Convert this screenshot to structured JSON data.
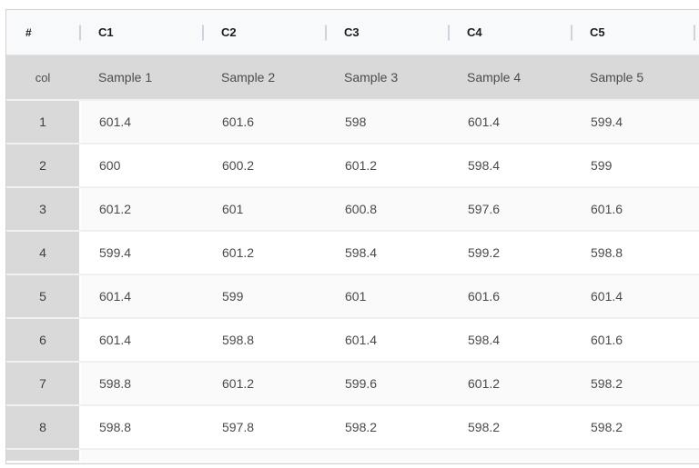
{
  "table": {
    "index_header": "#",
    "index_subheader": "col",
    "column_headers": [
      "C1",
      "C2",
      "C3",
      "C4",
      "C5"
    ],
    "column_subheaders": [
      "Sample 1",
      "Sample 2",
      "Sample 3",
      "Sample 4",
      "Sample 5"
    ],
    "rows": [
      {
        "index": "1",
        "values": [
          "601.4",
          "601.6",
          "598",
          "601.4",
          "599.4"
        ]
      },
      {
        "index": "2",
        "values": [
          "600",
          "600.2",
          "601.2",
          "598.4",
          "599"
        ]
      },
      {
        "index": "3",
        "values": [
          "601.2",
          "601",
          "600.8",
          "597.6",
          "601.6"
        ]
      },
      {
        "index": "4",
        "values": [
          "599.4",
          "601.2",
          "598.4",
          "599.2",
          "598.8"
        ]
      },
      {
        "index": "5",
        "values": [
          "601.4",
          "599",
          "601",
          "601.6",
          "601.4"
        ]
      },
      {
        "index": "6",
        "values": [
          "601.4",
          "598.8",
          "601.4",
          "598.4",
          "601.6"
        ]
      },
      {
        "index": "7",
        "values": [
          "598.8",
          "601.2",
          "599.6",
          "601.2",
          "598.2"
        ]
      },
      {
        "index": "8",
        "values": [
          "598.8",
          "597.8",
          "598.2",
          "598.2",
          "598.2"
        ]
      }
    ]
  },
  "scrollbar": {
    "left_arrow_icon": "◄"
  },
  "colors": {
    "header_bg": "#f8f9fa",
    "index_cell_bg": "#d9d9d9",
    "odd_row_bg": "#fafafa",
    "even_row_bg": "#ffffff",
    "column_divider": "#ccd3de",
    "scroll_track": "#f0f0f0",
    "scroll_thumb": "#c1c1c1"
  }
}
